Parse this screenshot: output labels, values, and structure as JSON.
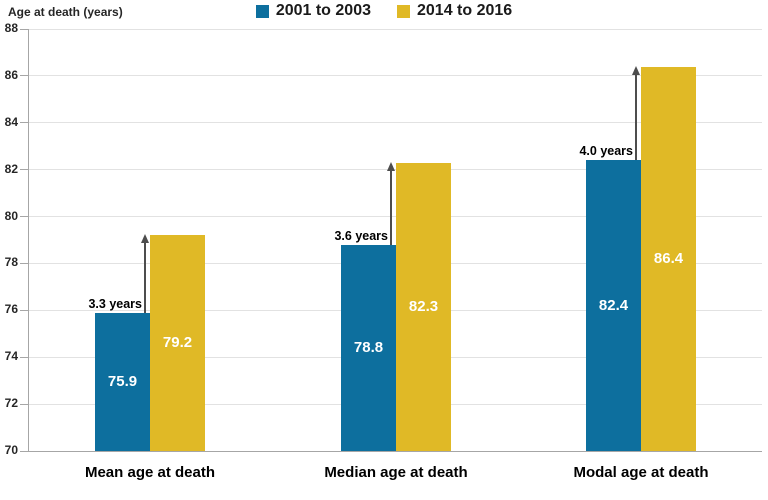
{
  "chart_data": {
    "type": "bar",
    "axis_title": "Age at death (years)",
    "categories": [
      "Mean age at death",
      "Median age at death",
      "Modal age at death"
    ],
    "series": [
      {
        "name": "2001 to 2003",
        "color": "#0d6f9e",
        "values": [
          75.9,
          78.8,
          82.4
        ]
      },
      {
        "name": "2014 to 2016",
        "color": "#e0b926",
        "values": [
          79.2,
          82.3,
          86.4
        ]
      }
    ],
    "gap_annotations": [
      "3.3 years",
      "3.6 years",
      "4.0 years"
    ],
    "yticks": [
      70,
      72,
      74,
      76,
      78,
      80,
      82,
      84,
      86,
      88
    ],
    "ylim": [
      70,
      88
    ],
    "grid": "horizontal",
    "legend_position": "top-center",
    "arrow_color": "#4d4d4d"
  }
}
